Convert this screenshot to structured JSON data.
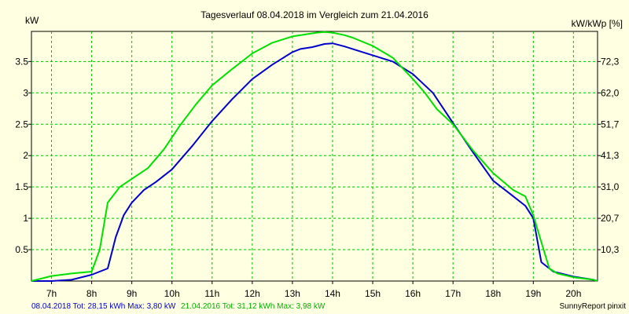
{
  "chart_data": {
    "type": "line",
    "title": "Tagesverlauf 08.04.2018 im Vergleich zum 21.04.2016",
    "ylabel_left": "kW",
    "ylabel_right": "kW/kWp [%]",
    "xlim": [
      6.5,
      20.6
    ],
    "ylim": [
      0,
      3.98
    ],
    "x_ticks": [
      "7h",
      "8h",
      "9h",
      "10h",
      "11h",
      "12h",
      "13h",
      "14h",
      "15h",
      "16h",
      "17h",
      "18h",
      "19h",
      "20h"
    ],
    "y_ticks_left": [
      "0.5",
      "1",
      "1.5",
      "2",
      "2.5",
      "3",
      "3.5"
    ],
    "y_ticks_right": [
      "10,3",
      "20,7",
      "31,0",
      "41,3",
      "51,7",
      "62,0",
      "72,3"
    ],
    "grid": true,
    "series": [
      {
        "name": "08.04.2018",
        "color": "#0000cc",
        "x": [
          6.5,
          7.0,
          7.5,
          8.0,
          8.2,
          8.4,
          8.6,
          8.8,
          9.0,
          9.3,
          9.6,
          10.0,
          10.5,
          11.0,
          11.5,
          12.0,
          12.5,
          13.0,
          13.2,
          13.5,
          13.8,
          14.0,
          14.3,
          14.5,
          15.0,
          15.5,
          16.0,
          16.5,
          17.0,
          17.5,
          18.0,
          18.5,
          18.8,
          19.0,
          19.2,
          19.5,
          20.0,
          20.5,
          20.6
        ],
        "y": [
          0.0,
          0.0,
          0.02,
          0.1,
          0.15,
          0.2,
          0.7,
          1.05,
          1.25,
          1.45,
          1.58,
          1.78,
          2.15,
          2.55,
          2.9,
          3.22,
          3.45,
          3.65,
          3.7,
          3.73,
          3.78,
          3.79,
          3.74,
          3.7,
          3.6,
          3.5,
          3.3,
          3.0,
          2.52,
          2.05,
          1.6,
          1.35,
          1.2,
          1.0,
          0.3,
          0.15,
          0.07,
          0.02,
          0.0
        ]
      },
      {
        "name": "21.04.2016",
        "color": "#00e000",
        "x": [
          6.5,
          7.0,
          7.5,
          8.0,
          8.2,
          8.4,
          8.7,
          9.0,
          9.4,
          9.8,
          10.2,
          10.6,
          11.0,
          11.5,
          12.0,
          12.5,
          13.0,
          13.3,
          13.6,
          13.8,
          14.0,
          14.3,
          14.5,
          15.0,
          15.5,
          16.0,
          16.3,
          16.6,
          17.0,
          17.5,
          18.0,
          18.5,
          18.8,
          19.0,
          19.2,
          19.4,
          19.6,
          20.0,
          20.5,
          20.6
        ],
        "y": [
          0.0,
          0.08,
          0.12,
          0.15,
          0.5,
          1.25,
          1.5,
          1.63,
          1.8,
          2.1,
          2.48,
          2.82,
          3.12,
          3.38,
          3.63,
          3.8,
          3.9,
          3.93,
          3.96,
          3.97,
          3.96,
          3.92,
          3.88,
          3.75,
          3.56,
          3.22,
          3.0,
          2.74,
          2.5,
          2.08,
          1.72,
          1.45,
          1.35,
          1.05,
          0.62,
          0.2,
          0.12,
          0.06,
          0.02,
          0.0
        ]
      }
    ],
    "footer": {
      "series1_label": "08.04.2018 Tot: 28,15 kWh Max: 3,80 kW",
      "series2_label": "21.04.2016 Tot: 31,12 kWh Max: 3,98 kW",
      "series1_color": "#0000cc",
      "series2_color": "#00b000",
      "credit": "SunnyReport pinxit"
    }
  }
}
